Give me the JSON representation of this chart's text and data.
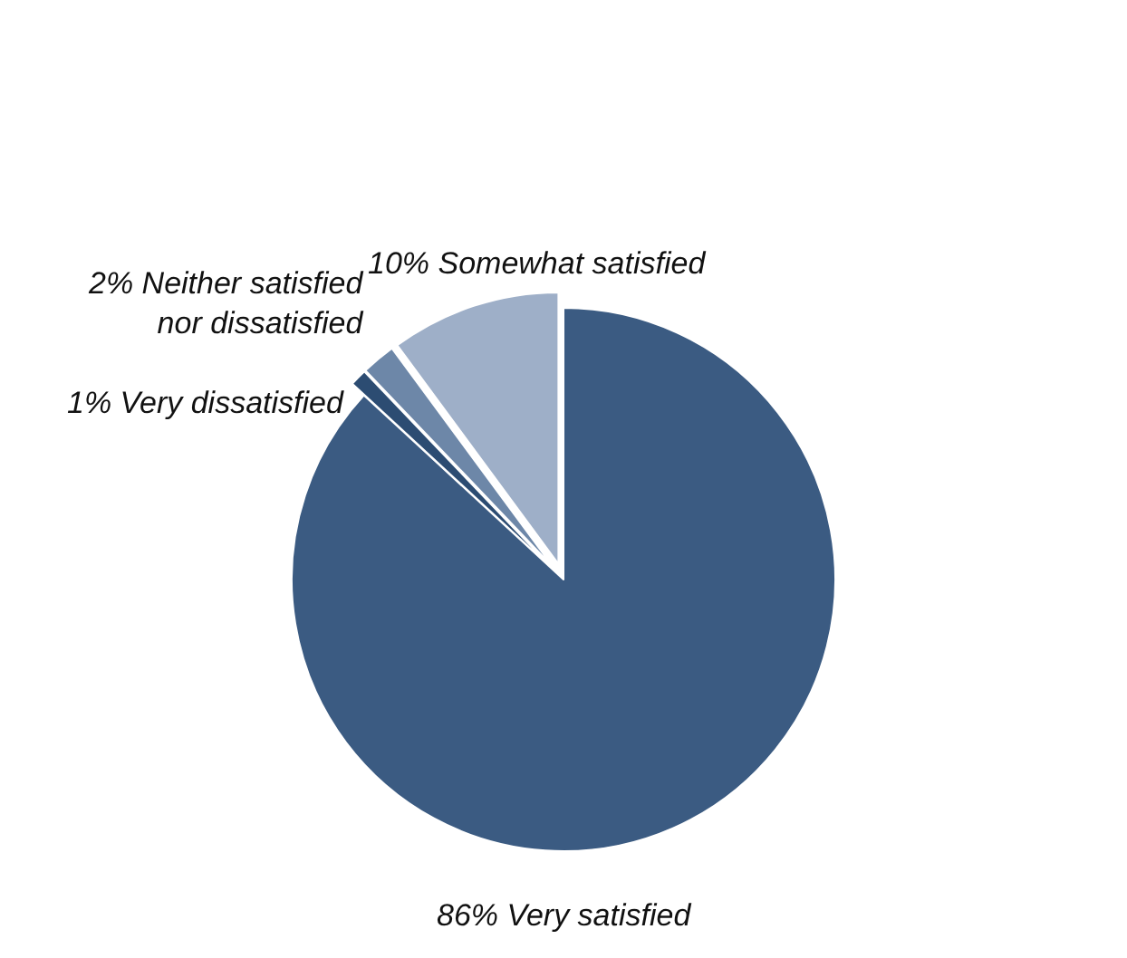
{
  "chart_data": {
    "type": "pie",
    "categories": [
      "86% Very satisfied",
      "1% Very dissatisfied",
      "2% Neither satisfied nor dissatisfied",
      "10% Somewhat satisfied"
    ],
    "values": [
      86,
      1,
      2,
      10
    ],
    "colors": [
      "#3b5b82",
      "#2c4c72",
      "#6d87a8",
      "#9eafc8"
    ],
    "legend": false
  }
}
